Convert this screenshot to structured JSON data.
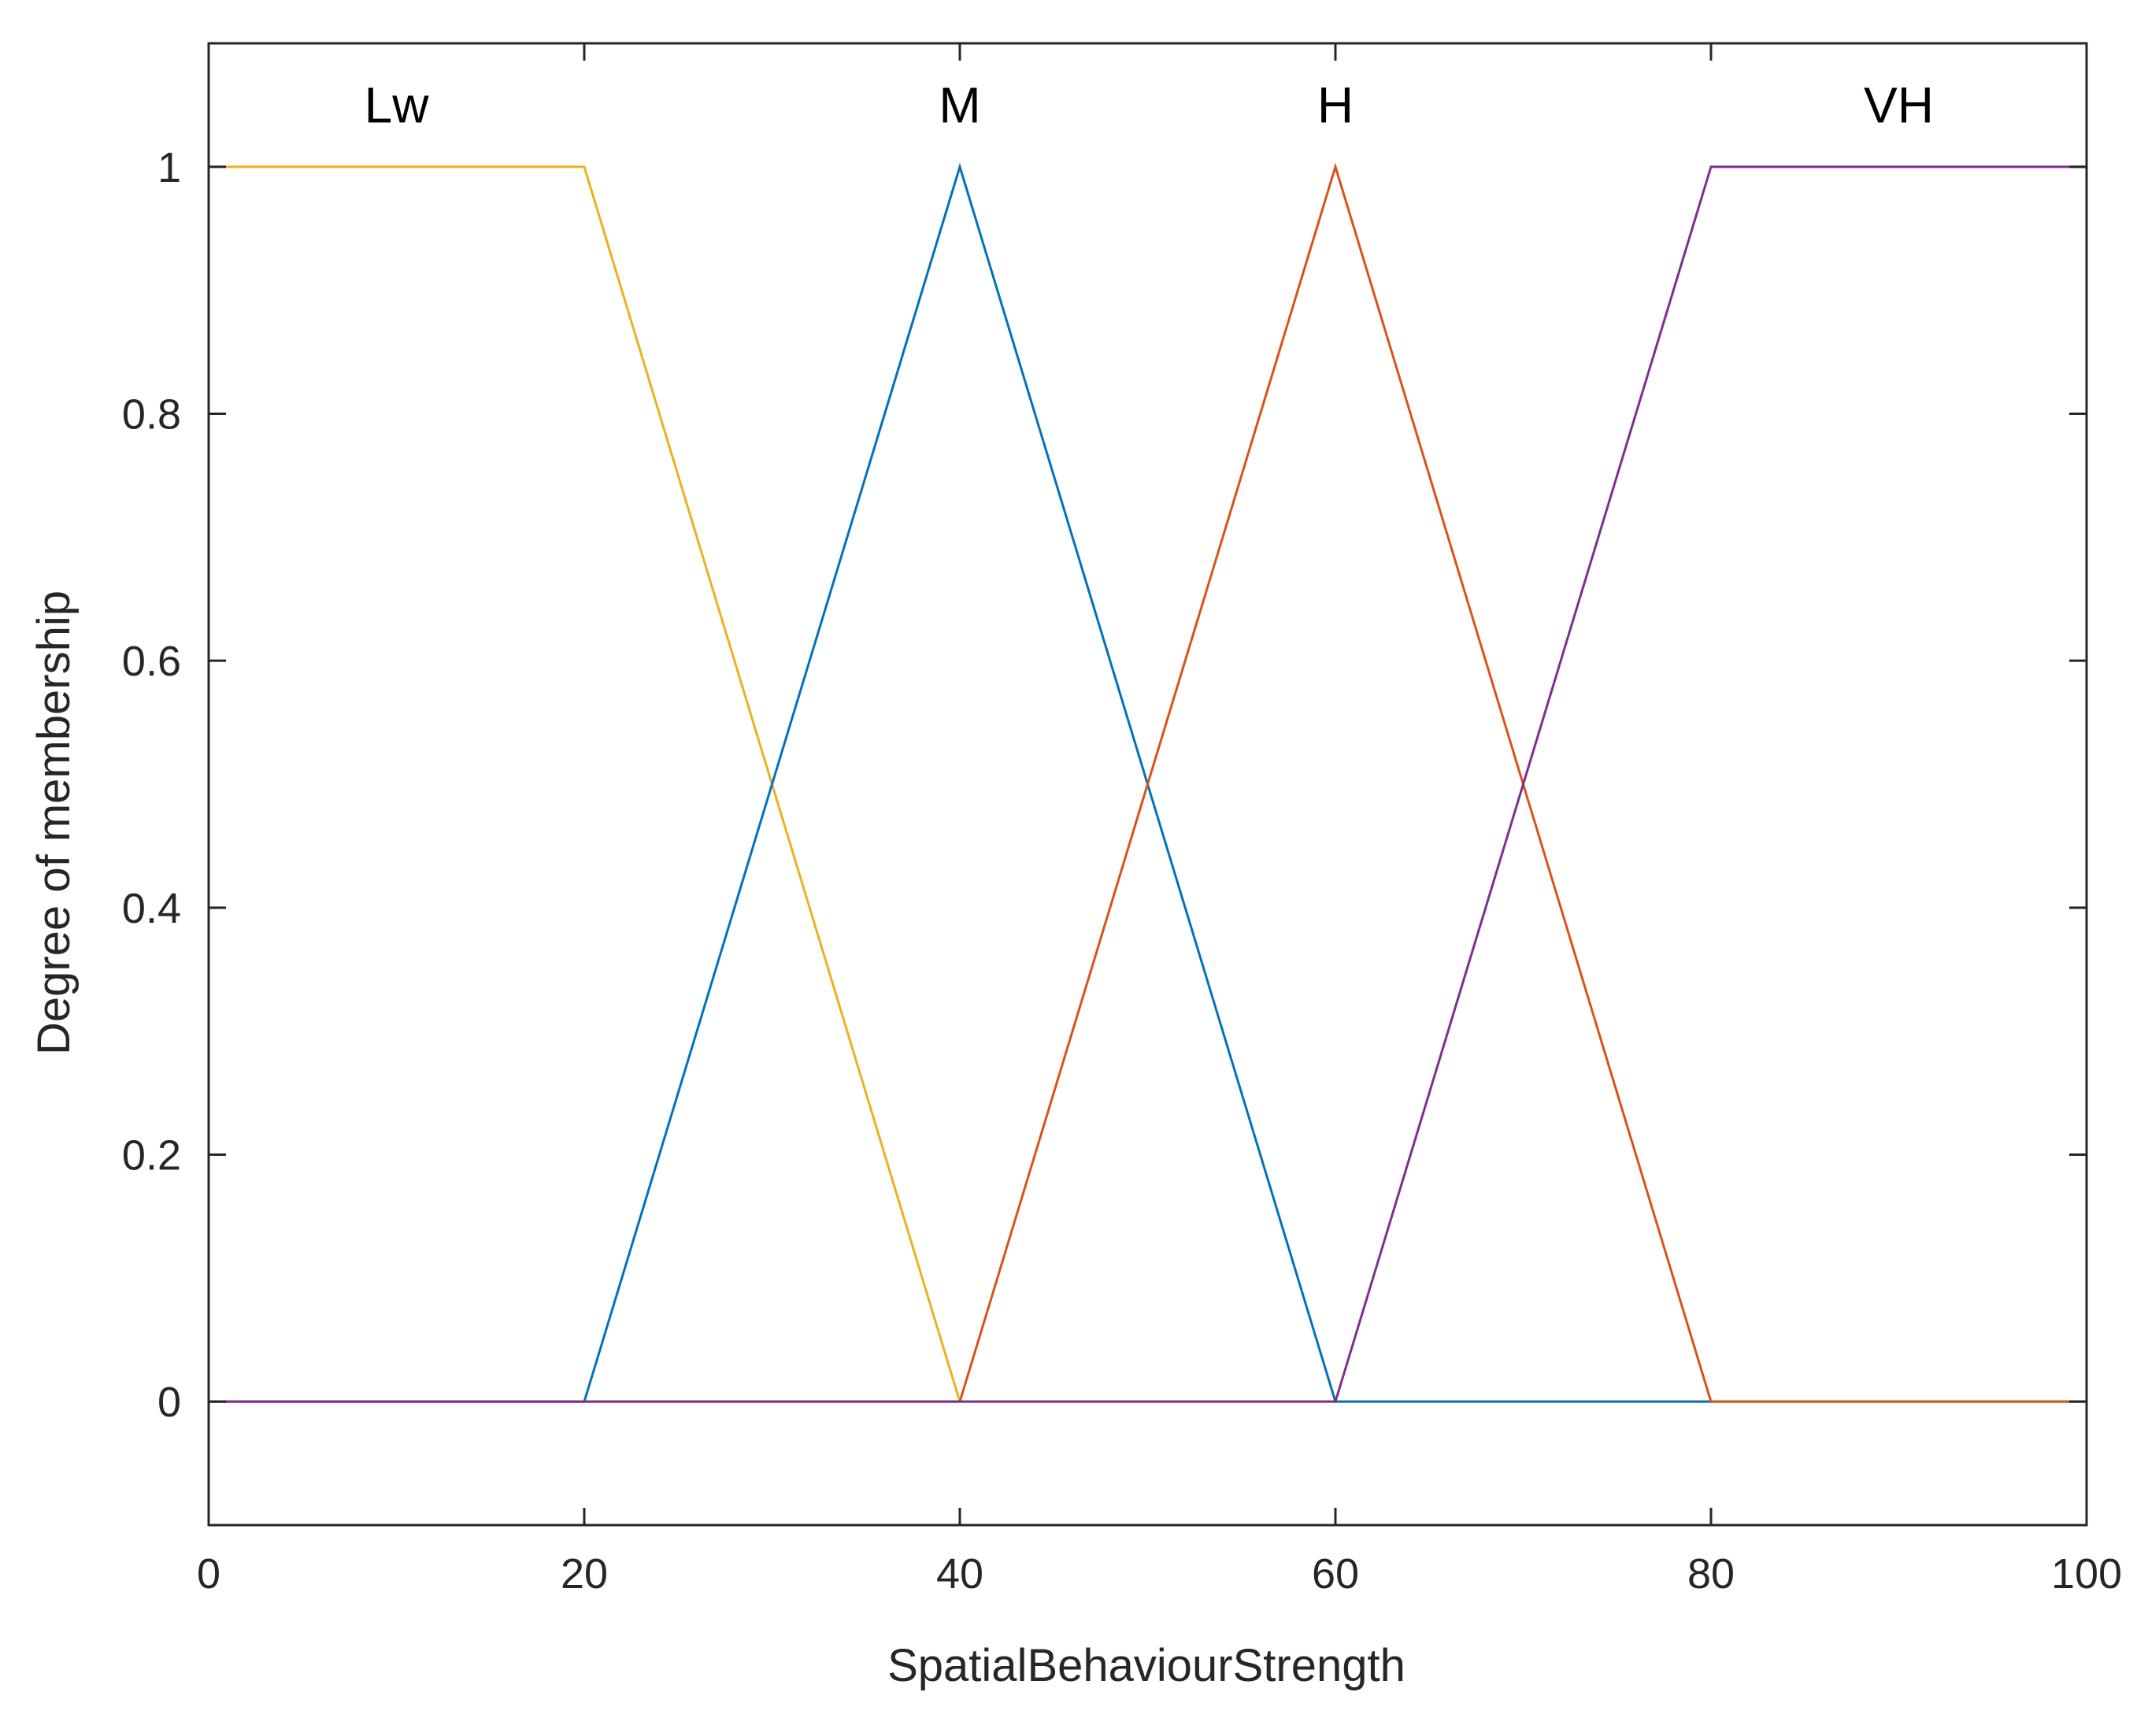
{
  "chart_data": {
    "type": "line",
    "title": "",
    "xlabel": "SpatialBehaviourStrength",
    "ylabel": "Degree of membership",
    "xlim": [
      0,
      100
    ],
    "ylim": [
      -0.1,
      1.1
    ],
    "xticks": [
      0,
      20,
      40,
      60,
      80,
      100
    ],
    "yticks": [
      0,
      0.2,
      0.4,
      0.6,
      0.8,
      1
    ],
    "grid": false,
    "legend": "none",
    "series": [
      {
        "name": "Lw",
        "color": "#EDB120",
        "x": [
          0,
          20,
          40,
          100
        ],
        "y": [
          1,
          1,
          0,
          0
        ]
      },
      {
        "name": "M",
        "color": "#0072BD",
        "x": [
          0,
          20,
          40,
          60,
          100
        ],
        "y": [
          0,
          0,
          1,
          0,
          0
        ]
      },
      {
        "name": "H",
        "color": "#D95319",
        "x": [
          0,
          40,
          60,
          80,
          100
        ],
        "y": [
          0,
          0,
          1,
          0,
          0
        ]
      },
      {
        "name": "VH",
        "color": "#7E2F8E",
        "x": [
          0,
          60,
          80,
          100
        ],
        "y": [
          0,
          0,
          1,
          1
        ]
      }
    ],
    "labels": [
      {
        "text": "Lw",
        "x": 10,
        "y": 1.05
      },
      {
        "text": "M",
        "x": 40,
        "y": 1.05
      },
      {
        "text": "H",
        "x": 60,
        "y": 1.05
      },
      {
        "text": "VH",
        "x": 90,
        "y": 1.05
      }
    ]
  }
}
